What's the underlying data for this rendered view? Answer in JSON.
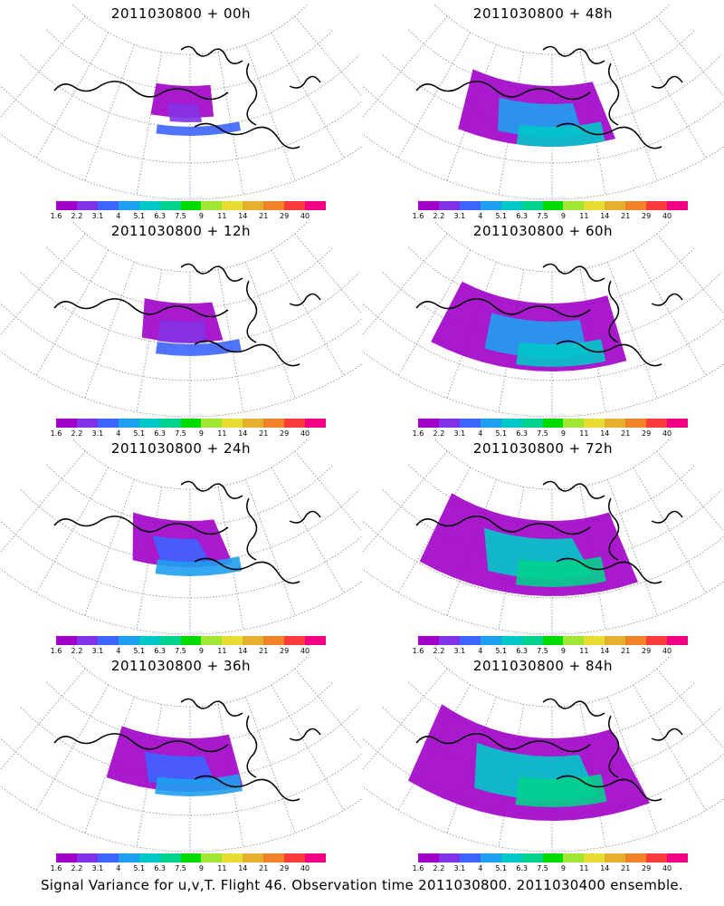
{
  "panels": [
    {
      "title": "2011030800 + 00h",
      "level": 0
    },
    {
      "title": "2011030800 + 48h",
      "level": 4
    },
    {
      "title": "2011030800 + 12h",
      "level": 1
    },
    {
      "title": "2011030800 + 60h",
      "level": 5
    },
    {
      "title": "2011030800 + 24h",
      "level": 2
    },
    {
      "title": "2011030800 + 72h",
      "level": 6
    },
    {
      "title": "2011030800 + 36h",
      "level": 3
    },
    {
      "title": "2011030800 + 84h",
      "level": 7
    }
  ],
  "colorbar": {
    "labels": [
      "1.6",
      "2.2",
      "3.1",
      "4",
      "5.1",
      "6.3",
      "7.5",
      "9",
      "11",
      "14",
      "21",
      "29",
      "40"
    ],
    "colors": [
      "#a000c8",
      "#8232e6",
      "#3c64ff",
      "#1ea0f0",
      "#00c8c8",
      "#00d28c",
      "#00dc00",
      "#a0e632",
      "#e6dc32",
      "#e6af2d",
      "#f08228",
      "#fa3c3c",
      "#f00082"
    ]
  },
  "caption": "Signal Variance for u,v,T. Flight 46. Observation time 2011030800. 2011030400 ensemble."
}
